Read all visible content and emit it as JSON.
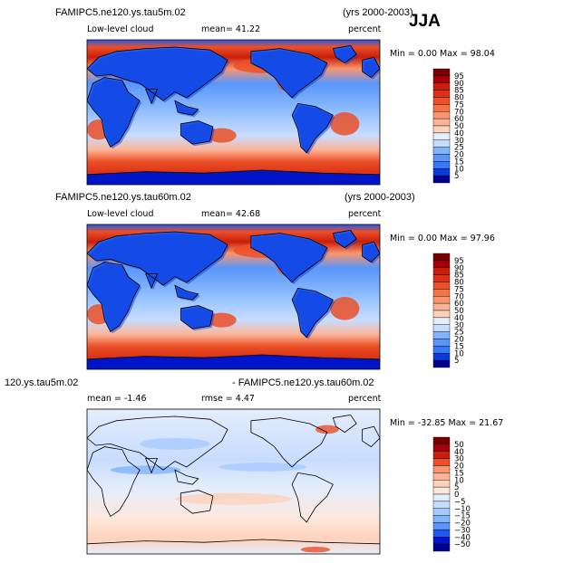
{
  "season": "JJA",
  "colors": {
    "low": [
      "#00008c",
      "#0014c8",
      "#0a3cdc",
      "#1e5af0",
      "#3778f5",
      "#5a96fa",
      "#82b4fc",
      "#a5cbff",
      "#c8dcff",
      "#e4edfb",
      "#ffffff",
      "#fde8de",
      "#fdd2bc",
      "#fcb496",
      "#fa966e",
      "#f57346",
      "#eb5028",
      "#dc3214",
      "#c81e0a",
      "#a5000a",
      "#780000"
    ]
  },
  "panels": [
    {
      "header_left": "FAMIPC5.ne120.ys.tau5m.02",
      "header_right": "(yrs 2000-2003)",
      "variable": "Low-level cloud",
      "stat1": "mean=  41.22",
      "stat2": "",
      "units": "percent",
      "minmax": "Min =   0.00 Max =  98.04",
      "levels": [
        "95",
        "90",
        "85",
        "80",
        "75",
        "70",
        "60",
        "50",
        "40",
        "30",
        "25",
        "20",
        "15",
        "10",
        "5"
      ]
    },
    {
      "header_left": "FAMIPC5.ne120.ys.tau60m.02",
      "header_right": "(yrs 2000-2003)",
      "variable": "Low-level cloud",
      "stat1": "mean=  42.68",
      "stat2": "",
      "units": "percent",
      "minmax": "Min =   0.00 Max =  97.96",
      "levels": [
        "95",
        "90",
        "85",
        "80",
        "75",
        "70",
        "60",
        "50",
        "40",
        "30",
        "25",
        "20",
        "15",
        "10",
        "5"
      ]
    },
    {
      "header_left": "120.ys.tau5m.02",
      "header_right": "- FAMIPC5.ne120.ys.tau60m.02",
      "variable": "",
      "stat1": "mean =  -1.46",
      "stat2": "rmse =   4.47",
      "units": "percent",
      "minmax": "Min = -32.85 Max =  21.67",
      "levels": [
        "50",
        "40",
        "30",
        "20",
        "15",
        "10",
        "5",
        "0",
        "−5",
        "−10",
        "−15",
        "−20",
        "−30",
        "−40",
        "−50"
      ]
    }
  ],
  "chart_data": [
    {
      "type": "heatmap",
      "title": "FAMIPC5.ne120.ys.tau5m.02",
      "subtitle": "(yrs 2000-2003)",
      "variable": "Low-level cloud",
      "units": "percent",
      "mean": 41.22,
      "min": 0.0,
      "max": 98.04,
      "contour_levels": [
        5,
        10,
        15,
        20,
        25,
        30,
        40,
        50,
        60,
        70,
        75,
        80,
        85,
        90,
        95
      ],
      "region": "global map"
    },
    {
      "type": "heatmap",
      "title": "FAMIPC5.ne120.ys.tau60m.02",
      "subtitle": "(yrs 2000-2003)",
      "variable": "Low-level cloud",
      "units": "percent",
      "mean": 42.68,
      "min": 0.0,
      "max": 97.96,
      "contour_levels": [
        5,
        10,
        15,
        20,
        25,
        30,
        40,
        50,
        60,
        70,
        75,
        80,
        85,
        90,
        95
      ],
      "region": "global map"
    },
    {
      "type": "heatmap",
      "title": "120.ys.tau5m.02 - FAMIPC5.ne120.ys.tau60m.02",
      "units": "percent",
      "mean": -1.46,
      "rmse": 4.47,
      "min": -32.85,
      "max": 21.67,
      "contour_levels": [
        -50,
        -40,
        -30,
        -20,
        -15,
        -10,
        -5,
        0,
        5,
        10,
        15,
        20,
        30,
        40,
        50
      ],
      "region": "global map"
    }
  ]
}
